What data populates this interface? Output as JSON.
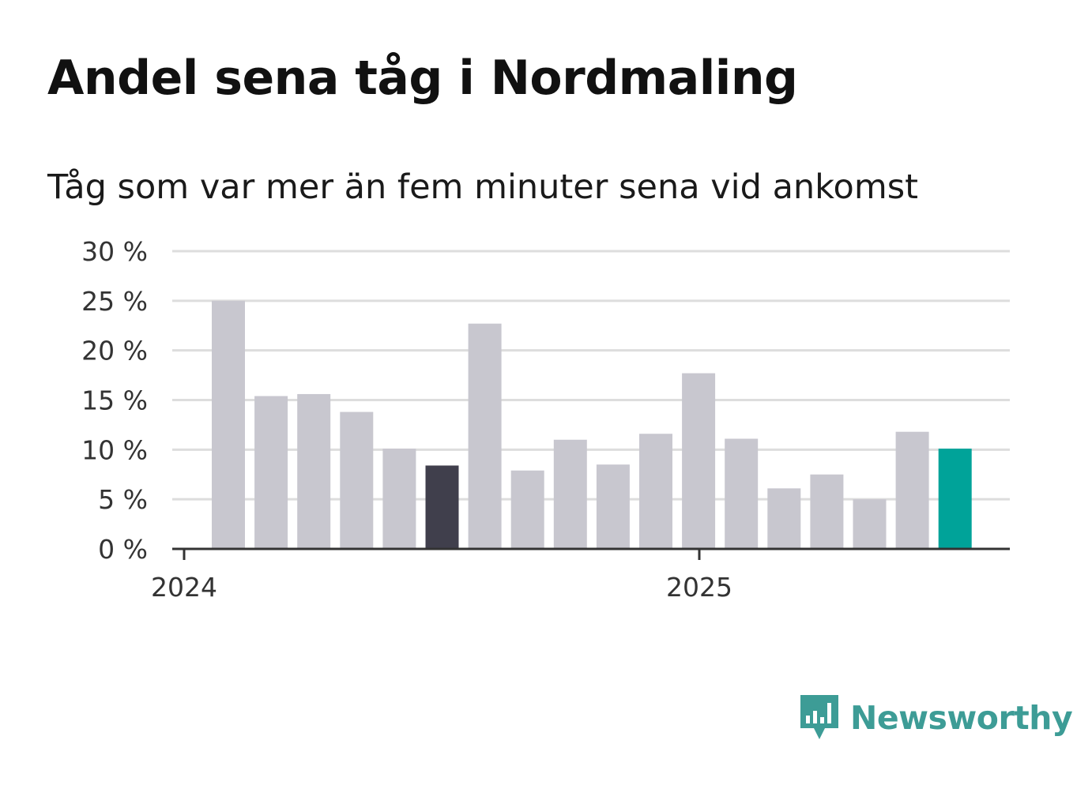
{
  "header": {
    "title": "Andel sena tåg i Nordmaling",
    "subtitle": "Tåg som var mer än fem minuter sena vid ankomst"
  },
  "brand": {
    "name": "Newsworthy",
    "icon": "bar-chart-speech-bubble-icon",
    "color": "#3d9c96"
  },
  "colors": {
    "bar": "#c8c7cf",
    "highlight_dark": "#403f4c",
    "highlight_teal": "#00a399",
    "grid": "#dddddd",
    "axis": "#333333"
  },
  "chart_data": {
    "type": "bar",
    "title": "Andel sena tåg i Nordmaling",
    "subtitle": "Tåg som var mer än fem minuter sena vid ankomst",
    "x": [
      "2024-02",
      "2024-03",
      "2024-04",
      "2024-05",
      "2024-06",
      "2024-07",
      "2024-08",
      "2024-09",
      "2024-10",
      "2024-11",
      "2024-12",
      "2025-01",
      "2025-02",
      "2025-03",
      "2025-04",
      "2025-05",
      "2025-06",
      "2025-07"
    ],
    "values": [
      25.0,
      15.4,
      15.6,
      13.8,
      10.1,
      8.4,
      22.7,
      7.9,
      11.0,
      8.5,
      11.6,
      17.7,
      11.1,
      6.1,
      7.5,
      5.0,
      11.8,
      10.1
    ],
    "highlight": {
      "5": "dark",
      "17": "teal"
    },
    "ylim": [
      0,
      30
    ],
    "y_ticks": [
      0,
      5,
      10,
      15,
      20,
      25,
      30
    ],
    "y_tick_labels": [
      "0 %",
      "5 %",
      "10 %",
      "15 %",
      "20 %",
      "25 %",
      "30 %"
    ],
    "x_tick_labels": [
      "2024",
      "2025"
    ],
    "grid": true,
    "xlabel": "",
    "ylabel": ""
  }
}
